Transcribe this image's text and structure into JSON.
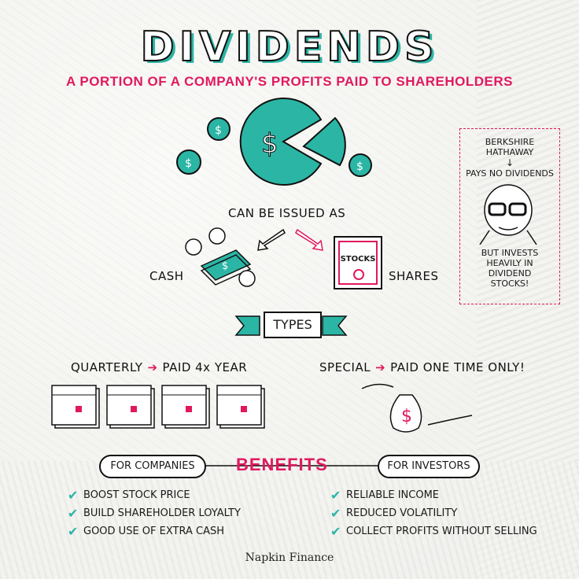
{
  "title": "DIVIDENDS",
  "subtitle": "A PORTION OF A COMPANY'S PROFITS PAID TO SHAREHOLDERS",
  "issued": {
    "heading": "CAN BE ISSUED AS",
    "cash_label": "CASH",
    "shares_label": "SHARES",
    "stock_certificate_text": "STOCKS",
    "coin_symbol": "$"
  },
  "sidebar": {
    "company": "BERKSHIRE HATHAWAY",
    "arrow": "↓",
    "fact": "PAYS NO DIVIDENDS",
    "note": "BUT INVESTS HEAVILY IN DIVIDEND STOCKS!"
  },
  "types": {
    "banner": "TYPES",
    "quarterly_label": "QUARTERLY",
    "quarterly_desc": "PAID 4x YEAR",
    "special_label": "SPECIAL",
    "special_desc": "PAID ONE TIME ONLY!",
    "arrow": "➔"
  },
  "benefits": {
    "heading": "BENEFITS",
    "companies_label": "FOR COMPANIES",
    "investors_label": "FOR INVESTORS",
    "companies_items": [
      "BOOST STOCK PRICE",
      "BUILD SHAREHOLDER LOYALTY",
      "GOOD USE OF EXTRA CASH"
    ],
    "investors_items": [
      "RELIABLE INCOME",
      "REDUCED VOLATILITY",
      "COLLECT PROFITS WITHOUT SELLING"
    ],
    "check": "✔"
  },
  "brand": "Napkin Finance",
  "colors": {
    "teal": "#2bb5a5",
    "pink": "#e0195f",
    "ink": "#111111"
  }
}
